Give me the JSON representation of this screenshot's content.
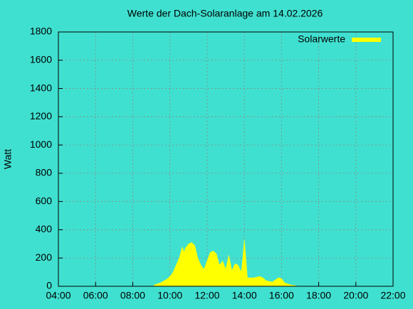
{
  "chart_data": {
    "type": "area",
    "title": "Werte der Dach-Solaranlage am 14.02.2026",
    "ylabel": "Watt",
    "x": [
      "09:05",
      "09:10",
      "09:30",
      "09:50",
      "10:00",
      "10:10",
      "10:20",
      "10:30",
      "10:40",
      "10:45",
      "10:50",
      "11:00",
      "11:10",
      "11:20",
      "11:30",
      "11:40",
      "11:50",
      "12:00",
      "12:10",
      "12:20",
      "12:30",
      "12:40",
      "12:50",
      "13:00",
      "13:10",
      "13:20",
      "13:30",
      "13:40",
      "13:50",
      "13:55",
      "14:00",
      "14:05",
      "14:10",
      "14:30",
      "14:50",
      "15:00",
      "15:10",
      "15:30",
      "15:50",
      "16:00",
      "16:10",
      "16:30",
      "16:45",
      "16:50"
    ],
    "series": [
      {
        "name": "Solarwerte",
        "color": "#ffff00",
        "values": [
          0,
          10,
          25,
          50,
          70,
          100,
          150,
          200,
          280,
          240,
          270,
          300,
          310,
          290,
          200,
          150,
          120,
          180,
          240,
          250,
          230,
          150,
          180,
          120,
          220,
          110,
          160,
          150,
          100,
          200,
          330,
          200,
          60,
          60,
          70,
          60,
          40,
          30,
          60,
          55,
          25,
          10,
          5,
          0
        ]
      }
    ],
    "xlim": [
      "04:00",
      "22:00"
    ],
    "xticks": [
      "04:00",
      "06:00",
      "08:00",
      "10:00",
      "12:00",
      "14:00",
      "16:00",
      "18:00",
      "20:00",
      "22:00"
    ],
    "ylim": [
      0,
      1800
    ],
    "yticks": [
      0,
      200,
      400,
      600,
      800,
      1000,
      1200,
      1400,
      1600,
      1800
    ],
    "grid": true,
    "legend": "top-right"
  }
}
